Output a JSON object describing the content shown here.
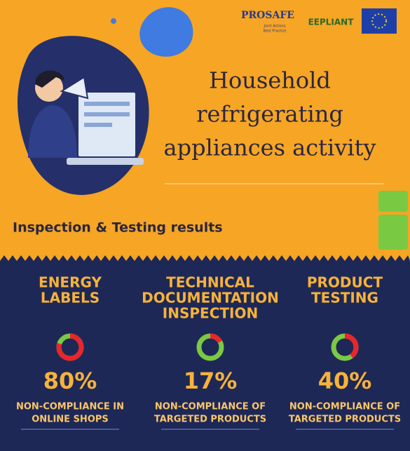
{
  "header": {
    "logos": {
      "prosafe": "PROSAFE",
      "prosafe_tagline": [
        "Joint Actions",
        "Best Practice"
      ],
      "eepliant": "EEPLIANT"
    },
    "title": [
      "Household",
      "refrigerating",
      "appliances activity"
    ],
    "subtitle": "Inspection & Testing results"
  },
  "panels": [
    {
      "heading": [
        "ENERGY",
        "LABELS"
      ],
      "value": 80,
      "value_label": "80%",
      "caption": [
        "NON-COMPLIANCE IN",
        "ONLINE SHOPS"
      ]
    },
    {
      "heading": [
        "TECHNICAL",
        "DOCUMENTATION",
        "INSPECTION"
      ],
      "value": 17,
      "value_label": "17%",
      "caption": [
        "NON-COMPLIANCE OF",
        "TARGETED PRODUCTS"
      ]
    },
    {
      "heading": [
        "PRODUCT",
        "TESTING"
      ],
      "value": 40,
      "value_label": "40%",
      "caption": [
        "NON-COMPLIANCE OF",
        "TARGETED PRODUCTS"
      ]
    }
  ]
}
